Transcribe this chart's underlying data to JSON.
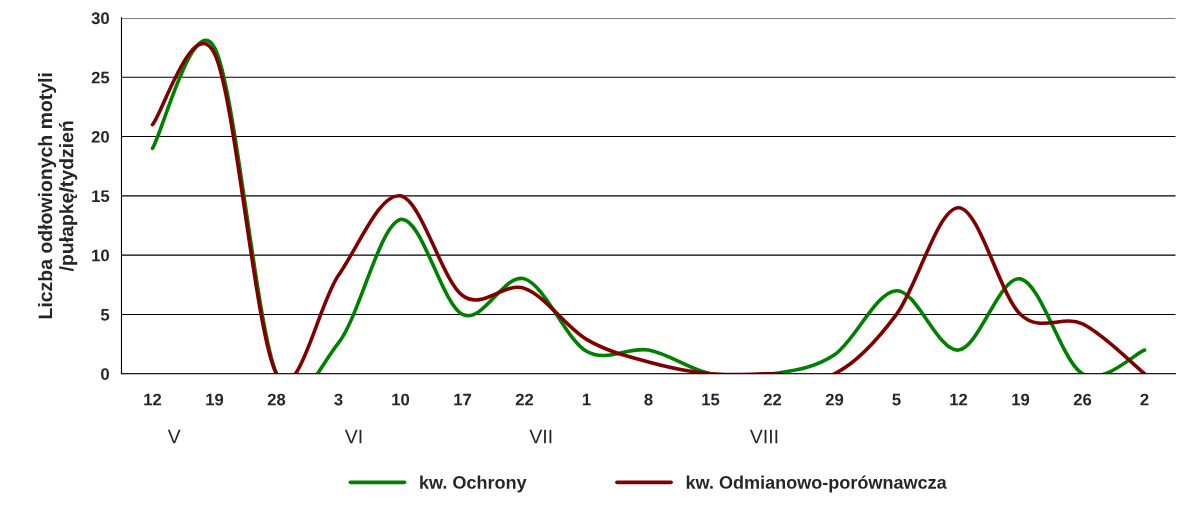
{
  "chart_data": {
    "type": "line",
    "categories": [
      "12",
      "19",
      "28",
      "3",
      "10",
      "17",
      "22",
      "1",
      "8",
      "15",
      "22",
      "29",
      "5",
      "12",
      "19",
      "26",
      "2"
    ],
    "series": [
      {
        "name": "kw. Ochrony",
        "color": "#008000",
        "values": [
          19,
          27.5,
          0,
          2.6,
          13,
          5,
          8,
          1.9,
          2,
          0,
          0,
          1.6,
          7,
          2,
          8,
          0,
          2
        ]
      },
      {
        "name": "kw. Odmianowo-porównawcza",
        "color": "#800000",
        "values": [
          21,
          27,
          0,
          8.3,
          15,
          6.6,
          7.2,
          2.9,
          1,
          0,
          0,
          0,
          5,
          14,
          5,
          4.2,
          0
        ]
      }
    ],
    "ylabel": "Liczba odłowionych motyli\n/pułapkę/tydzień",
    "ylim": [
      0,
      30
    ],
    "yticks": [
      0,
      5,
      10,
      15,
      20,
      25,
      30
    ],
    "annotations": [
      "V",
      "VI",
      "VII",
      "VIII"
    ],
    "grid": "y",
    "legend": "bottom",
    "line_style": "solid"
  }
}
